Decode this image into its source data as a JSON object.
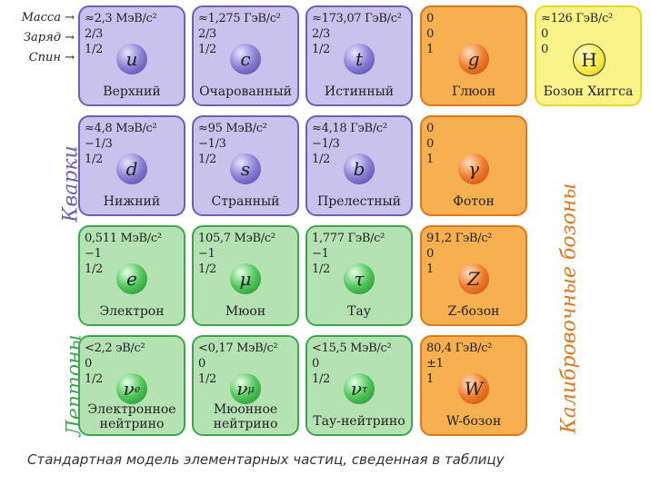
{
  "row_labels": {
    "mass": "Масса →",
    "charge": "Заряд →",
    "spin": "Спин →"
  },
  "group_labels": {
    "quarks": "Кварки",
    "leptons": "Лептоны",
    "bosons": "Калибровочные бозоны"
  },
  "caption": "Стандартная модель элементарных частиц, сведенная в таблицу",
  "colors": {
    "quark": "#c8c2ec",
    "boson": "#f6b04f",
    "lepton": "#b4e2b2",
    "higgs": "#faf38a"
  },
  "particles": [
    {
      "type": "quark",
      "col": 0,
      "row": 0,
      "mass": "≈2,3 МэВ/c²",
      "charge": "2/3",
      "spin": "1/2",
      "symbol": "u",
      "sub": "",
      "name": "Верхний"
    },
    {
      "type": "quark",
      "col": 1,
      "row": 0,
      "mass": "≈1,275 ГэВ/c²",
      "charge": "2/3",
      "spin": "1/2",
      "symbol": "c",
      "sub": "",
      "name": "Очарованный"
    },
    {
      "type": "quark",
      "col": 2,
      "row": 0,
      "mass": "≈173,07 ГэВ/c²",
      "charge": "2/3",
      "spin": "1/2",
      "symbol": "t",
      "sub": "",
      "name": "Истинный"
    },
    {
      "type": "boson",
      "col": 3,
      "row": 0,
      "mass": "0",
      "charge": "0",
      "spin": "1",
      "symbol": "g",
      "sub": "",
      "name": "Глюон"
    },
    {
      "type": "higgs",
      "col": 4,
      "row": 0,
      "mass": "≈126 ГэВ/c²",
      "charge": "0",
      "spin": "0",
      "symbol": "H",
      "sub": "",
      "name": "Бозон Хиггса"
    },
    {
      "type": "quark",
      "col": 0,
      "row": 1,
      "mass": "≈4,8 МэВ/c²",
      "charge": "−1/3",
      "spin": "1/2",
      "symbol": "d",
      "sub": "",
      "name": "Нижний"
    },
    {
      "type": "quark",
      "col": 1,
      "row": 1,
      "mass": "≈95 МэВ/c²",
      "charge": "−1/3",
      "spin": "1/2",
      "symbol": "s",
      "sub": "",
      "name": "Странный"
    },
    {
      "type": "quark",
      "col": 2,
      "row": 1,
      "mass": "≈4,18 ГэВ/c²",
      "charge": "−1/3",
      "spin": "1/2",
      "symbol": "b",
      "sub": "",
      "name": "Прелестный"
    },
    {
      "type": "boson",
      "col": 3,
      "row": 1,
      "mass": "0",
      "charge": "0",
      "spin": "1",
      "symbol": "γ",
      "sub": "",
      "name": "Фотон"
    },
    {
      "type": "lepton",
      "col": 0,
      "row": 2,
      "mass": "0,511 МэВ/c²",
      "charge": "−1",
      "spin": "1/2",
      "symbol": "e",
      "sub": "",
      "name": "Электрон"
    },
    {
      "type": "lepton",
      "col": 1,
      "row": 2,
      "mass": "105,7 МэВ/c²",
      "charge": "−1",
      "spin": "1/2",
      "symbol": "μ",
      "sub": "",
      "name": "Мюон"
    },
    {
      "type": "lepton",
      "col": 2,
      "row": 2,
      "mass": "1,777 ГэВ/c²",
      "charge": "−1",
      "spin": "1/2",
      "symbol": "τ",
      "sub": "",
      "name": "Тау"
    },
    {
      "type": "boson",
      "col": 3,
      "row": 2,
      "mass": "91,2 ГэВ/c²",
      "charge": "0",
      "spin": "1",
      "symbol": "Z",
      "sub": "",
      "name": "Z-бозон"
    },
    {
      "type": "lepton",
      "col": 0,
      "row": 3,
      "mass": "<2,2 эВ/c²",
      "charge": "0",
      "spin": "1/2",
      "symbol": "ν",
      "sub": "e",
      "name": "Электронное нейтрино"
    },
    {
      "type": "lepton",
      "col": 1,
      "row": 3,
      "mass": "<0,17 МэВ/c²",
      "charge": "0",
      "spin": "1/2",
      "symbol": "ν",
      "sub": "μ",
      "name": "Мюонное нейтрино"
    },
    {
      "type": "lepton",
      "col": 2,
      "row": 3,
      "mass": "<15,5 МэВ/c²",
      "charge": "0",
      "spin": "1/2",
      "symbol": "ν",
      "sub": "τ",
      "name": "Тау-нейтрино"
    },
    {
      "type": "boson",
      "col": 3,
      "row": 3,
      "mass": "80,4 ГэВ/c²",
      "charge": "±1",
      "spin": "1",
      "symbol": "W",
      "sub": "",
      "name": "W-бозон"
    }
  ]
}
